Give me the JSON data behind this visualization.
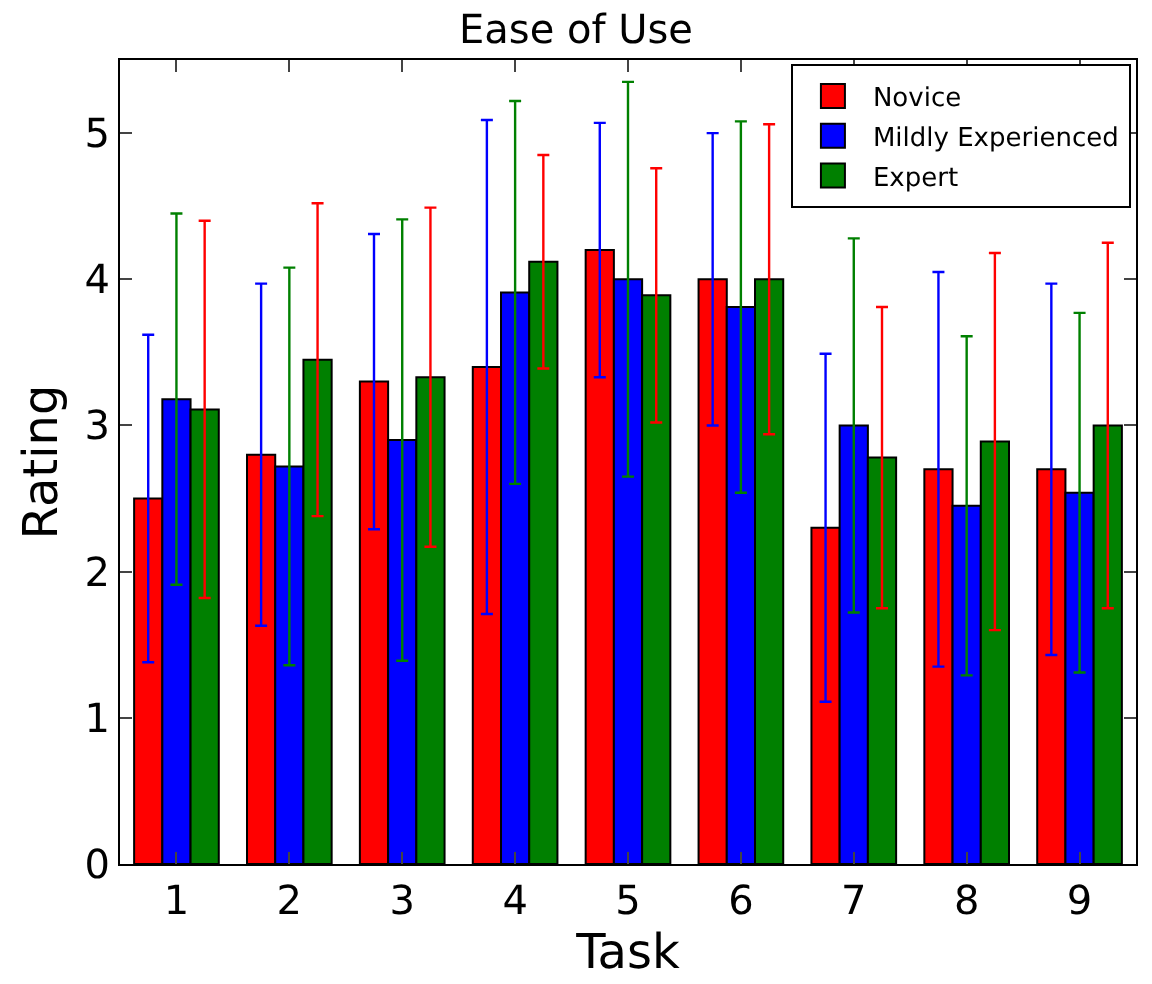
{
  "chart_data": {
    "type": "bar",
    "title": "Ease of Use",
    "xlabel": "Task",
    "ylabel": "Rating",
    "categories": [
      "1",
      "2",
      "3",
      "4",
      "5",
      "6",
      "7",
      "8",
      "9"
    ],
    "series": [
      {
        "name": "Novice",
        "color": "#ff0000",
        "values": [
          2.5,
          2.8,
          3.3,
          3.4,
          4.2,
          4.0,
          2.3,
          2.7,
          2.7
        ],
        "errors": [
          1.12,
          1.17,
          1.01,
          1.69,
          0.87,
          1.0,
          1.19,
          1.35,
          1.27
        ]
      },
      {
        "name": "Mildly Experienced",
        "color": "#0000ff",
        "values": [
          3.18,
          2.72,
          2.9,
          3.91,
          4.0,
          3.81,
          3.0,
          2.45,
          2.54
        ],
        "errors": [
          1.27,
          1.36,
          1.51,
          1.31,
          1.35,
          1.27,
          1.28,
          1.16,
          1.23
        ]
      },
      {
        "name": "Expert",
        "color": "#008000",
        "values": [
          3.11,
          3.45,
          3.33,
          4.12,
          3.89,
          4.0,
          2.78,
          2.89,
          3.0
        ],
        "errors": [
          1.29,
          1.07,
          1.16,
          0.73,
          0.87,
          1.06,
          1.03,
          1.29,
          1.25
        ]
      }
    ],
    "ylim": [
      0,
      5.5
    ],
    "yticks": [
      0,
      1,
      2,
      3,
      4,
      5
    ],
    "legend": "top right"
  }
}
